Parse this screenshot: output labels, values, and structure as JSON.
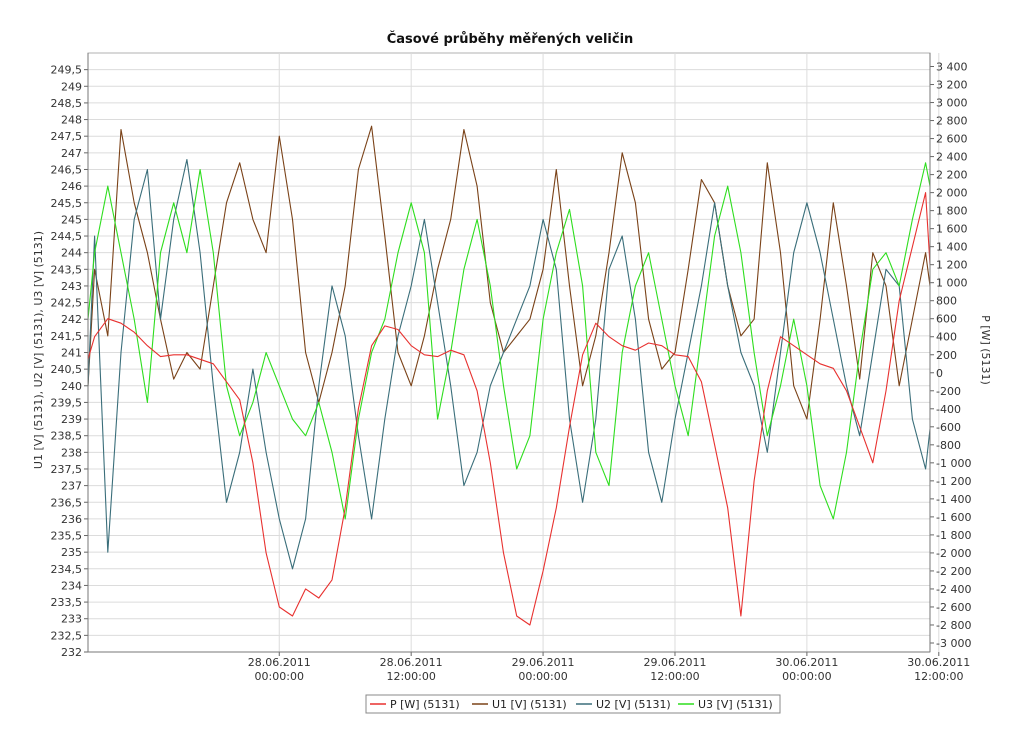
{
  "chart_data": {
    "type": "line",
    "title": "Časové průběhy měřených veličin",
    "ylabel_left": "U1 [V] (5131), U2 [V] (5131), U3 [V] (5131)",
    "ylabel_right": "P [W] (5131)",
    "y_left_range": [
      232,
      250
    ],
    "y_right_range": [
      -3100,
      3550
    ],
    "y_left_ticks": [
      "232",
      "232,5",
      "233",
      "233,5",
      "234",
      "234,5",
      "235",
      "235,5",
      "236",
      "236,5",
      "237",
      "237,5",
      "238",
      "238,5",
      "239",
      "239,5",
      "240",
      "240,5",
      "241",
      "241,5",
      "242",
      "242,5",
      "243",
      "243,5",
      "244",
      "244,5",
      "245",
      "245,5",
      "246",
      "246,5",
      "247",
      "247,5",
      "248",
      "248,5",
      "249",
      "249,5"
    ],
    "y_right_ticks": [
      "-3 000",
      "-2 800",
      "-2 600",
      "-2 400",
      "-2 200",
      "-2 000",
      "-1 800",
      "-1 600",
      "-1 400",
      "-1 200",
      "-1 000",
      "-800",
      "-600",
      "-400",
      "-200",
      "0",
      "200",
      "400",
      "600",
      "800",
      "1 000",
      "1 200",
      "1 400",
      "1 600",
      "1 800",
      "2 000",
      "2 200",
      "2 400",
      "2 600",
      "2 800",
      "3 000",
      "3 200",
      "3 400"
    ],
    "y_right_tick_values": [
      -3000,
      -2800,
      -2600,
      -2400,
      -2200,
      -2000,
      -1800,
      -1600,
      -1400,
      -1200,
      -1000,
      -800,
      -600,
      -400,
      -200,
      0,
      200,
      400,
      600,
      800,
      1000,
      1200,
      1400,
      1600,
      1800,
      2000,
      2200,
      2400,
      2600,
      2800,
      3000,
      3200,
      3400
    ],
    "x_hours_range": [
      -17.4,
      59.2
    ],
    "x_ticks": [
      {
        "hour": 0,
        "date": "28.06.2011",
        "time": "00:00:00"
      },
      {
        "hour": 12,
        "date": "28.06.2011",
        "time": "12:00:00"
      },
      {
        "hour": 24,
        "date": "29.06.2011",
        "time": "00:00:00"
      },
      {
        "hour": 36,
        "date": "29.06.2011",
        "time": "12:00:00"
      },
      {
        "hour": 48,
        "date": "30.06.2011",
        "time": "00:00:00"
      },
      {
        "hour": 60,
        "date": "30.06.2011",
        "time": "12:00:00"
      }
    ],
    "grid": true,
    "legend_position": "bottom",
    "series": [
      {
        "name": "P [W] (5131)",
        "axis": "right",
        "color": "#e8312f",
        "hours": [
          -17.4,
          -16.8,
          -15.6,
          -14.4,
          -13.2,
          -12,
          -10.8,
          -9.6,
          -8.4,
          -7.2,
          -6,
          -4.8,
          -3.6,
          -2.4,
          -1.2,
          0,
          1.2,
          2.4,
          3.6,
          4.8,
          6,
          7.2,
          8.4,
          9.6,
          10.8,
          12,
          13.2,
          14.4,
          15.6,
          16.8,
          18,
          19.2,
          20.4,
          21.6,
          22.8,
          24,
          25.2,
          26.4,
          27.6,
          28.8,
          30,
          31.2,
          32.4,
          33.6,
          34.8,
          36,
          37.2,
          38.4,
          39.6,
          40.8,
          42,
          43.2,
          44.4,
          45.6,
          46.8,
          48,
          49.2,
          50.4,
          51.6,
          52.8,
          54,
          55.2,
          56.4,
          57.6,
          58.8,
          59.2
        ],
        "values": [
          150,
          400,
          600,
          550,
          450,
          300,
          180,
          200,
          200,
          150,
          100,
          -100,
          -300,
          -1000,
          -2000,
          -2600,
          -2700,
          -2400,
          -2500,
          -2300,
          -1500,
          -400,
          300,
          520,
          480,
          300,
          200,
          180,
          250,
          200,
          -200,
          -1000,
          -2000,
          -2700,
          -2800,
          -2200,
          -1500,
          -600,
          200,
          550,
          400,
          300,
          250,
          330,
          300,
          200,
          180,
          -100,
          -800,
          -1500,
          -2700,
          -1200,
          -200,
          400,
          300,
          200,
          100,
          50,
          -200,
          -600,
          -1000,
          -200,
          800,
          1400,
          2000,
          1200
        ]
      },
      {
        "name": "U1 [V] (5131)",
        "axis": "left",
        "color": "#7a4218",
        "hours": [
          -17.4,
          -16.8,
          -15.6,
          -14.4,
          -13.2,
          -12,
          -10.8,
          -9.6,
          -8.4,
          -7.2,
          -6,
          -4.8,
          -3.6,
          -2.4,
          -1.2,
          0,
          1.2,
          2.4,
          3.6,
          4.8,
          6,
          7.2,
          8.4,
          9.6,
          10.8,
          12,
          13.2,
          14.4,
          15.6,
          16.8,
          18,
          19.2,
          20.4,
          21.6,
          22.8,
          24,
          25.2,
          26.4,
          27.6,
          28.8,
          30,
          31.2,
          32.4,
          33.6,
          34.8,
          36,
          37.2,
          38.4,
          39.6,
          40.8,
          42,
          43.2,
          44.4,
          45.6,
          46.8,
          48,
          49.2,
          50.4,
          51.6,
          52.8,
          54,
          55.2,
          56.4,
          57.6,
          58.8,
          59.2
        ],
        "values": [
          240,
          243.5,
          241.5,
          247.7,
          245.5,
          244,
          242,
          240.2,
          241,
          240.5,
          243,
          245.5,
          246.7,
          245,
          244,
          247.5,
          245,
          241,
          239.5,
          241,
          243,
          246.5,
          247.8,
          244.5,
          241,
          240,
          241.5,
          243.5,
          245,
          247.7,
          246,
          242.5,
          241,
          241.5,
          242,
          243.5,
          246.5,
          243,
          240,
          241.5,
          244,
          247,
          245.5,
          242,
          240.5,
          241,
          243.5,
          246.2,
          245.5,
          243,
          241.5,
          242,
          246.7,
          244,
          240,
          239,
          242,
          245.5,
          243,
          240.2,
          244,
          243,
          240,
          242,
          244,
          243
        ]
      },
      {
        "name": "U2 [V] (5131)",
        "axis": "left",
        "color": "#3a6e7a",
        "hours": [
          -17.4,
          -16.8,
          -15.6,
          -14.4,
          -13.2,
          -12,
          -10.8,
          -9.6,
          -8.4,
          -7.2,
          -6,
          -4.8,
          -3.6,
          -2.4,
          -1.2,
          0,
          1.2,
          2.4,
          3.6,
          4.8,
          6,
          7.2,
          8.4,
          9.6,
          10.8,
          12,
          13.2,
          14.4,
          15.6,
          16.8,
          18,
          19.2,
          20.4,
          21.6,
          22.8,
          24,
          25.2,
          26.4,
          27.6,
          28.8,
          30,
          31.2,
          32.4,
          33.6,
          34.8,
          36,
          37.2,
          38.4,
          39.6,
          40.8,
          42,
          43.2,
          44.4,
          45.6,
          46.8,
          48,
          49.2,
          50.4,
          51.6,
          52.8,
          54,
          55.2,
          56.4,
          57.6,
          58.8,
          59.2
        ],
        "values": [
          240,
          244.5,
          235,
          241,
          245,
          246.5,
          242,
          245,
          246.8,
          244,
          240,
          236.5,
          238,
          240.5,
          238,
          236,
          234.5,
          236,
          240,
          243,
          241.5,
          238.5,
          236,
          239,
          241.5,
          243,
          245,
          242.5,
          240,
          237,
          238,
          240,
          241,
          242,
          243,
          245,
          243.5,
          239,
          236.5,
          239,
          243.5,
          244.5,
          242,
          238,
          236.5,
          239,
          241,
          243,
          245.5,
          243,
          241,
          240,
          238,
          241,
          244,
          245.5,
          244,
          242,
          240,
          238.5,
          241,
          243.5,
          243,
          239,
          237.5,
          238.7
        ]
      },
      {
        "name": "U3 [V] (5131)",
        "axis": "left",
        "color": "#2ede1e",
        "hours": [
          -17.4,
          -16.8,
          -15.6,
          -14.4,
          -13.2,
          -12,
          -10.8,
          -9.6,
          -8.4,
          -7.2,
          -6,
          -4.8,
          -3.6,
          -2.4,
          -1.2,
          0,
          1.2,
          2.4,
          3.6,
          4.8,
          6,
          7.2,
          8.4,
          9.6,
          10.8,
          12,
          13.2,
          14.4,
          15.6,
          16.8,
          18,
          19.2,
          20.4,
          21.6,
          22.8,
          24,
          25.2,
          26.4,
          27.6,
          28.8,
          30,
          31.2,
          32.4,
          33.6,
          34.8,
          36,
          37.2,
          38.4,
          39.6,
          40.8,
          42,
          43.2,
          44.4,
          45.6,
          46.8,
          48,
          49.2,
          50.4,
          51.6,
          52.8,
          54,
          55.2,
          56.4,
          57.6,
          58.8,
          59.2
        ],
        "values": [
          242,
          244,
          246,
          244,
          242,
          239.5,
          244,
          245.5,
          244,
          246.5,
          244,
          240,
          238.5,
          239.5,
          241,
          240,
          239,
          238.5,
          239.5,
          238,
          236,
          239,
          241,
          242,
          244,
          245.5,
          244,
          239,
          241,
          243.5,
          245,
          243,
          240,
          237.5,
          238.5,
          242,
          244,
          245.3,
          243,
          238,
          237,
          241,
          243,
          244,
          242,
          240,
          238.5,
          241.5,
          244.5,
          246,
          244,
          241,
          238.5,
          240,
          242,
          240,
          237,
          236,
          238,
          241,
          243.5,
          244,
          243,
          245,
          246.7,
          246
        ]
      }
    ]
  },
  "legend": {
    "items": [
      "P [W] (5131)",
      "U1 [V] (5131)",
      "U2 [V] (5131)",
      "U3 [V] (5131)"
    ]
  }
}
